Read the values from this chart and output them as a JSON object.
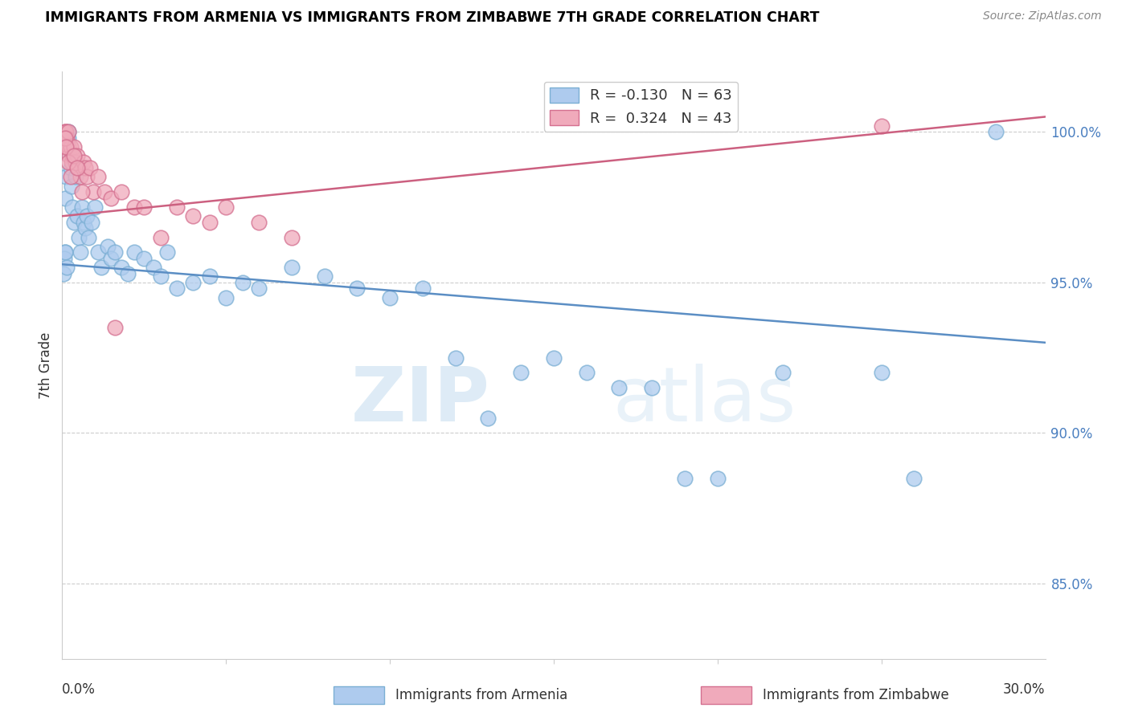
{
  "title": "IMMIGRANTS FROM ARMENIA VS IMMIGRANTS FROM ZIMBABWE 7TH GRADE CORRELATION CHART",
  "source": "Source: ZipAtlas.com",
  "ylabel": "7th Grade",
  "right_yticks": [
    85.0,
    90.0,
    95.0,
    100.0
  ],
  "xlim": [
    0.0,
    30.0
  ],
  "ylim": [
    82.5,
    102.0
  ],
  "legend1_label": "Immigrants from Armenia",
  "legend2_label": "Immigrants from Zimbabwe",
  "R_armenia": -0.13,
  "N_armenia": 63,
  "R_zimbabwe": 0.324,
  "N_zimbabwe": 43,
  "armenia_color": "#aecbee",
  "zimbabwe_color": "#f0aabb",
  "armenia_edge_color": "#7bafd4",
  "zimbabwe_edge_color": "#d47090",
  "armenia_line_color": "#5b8ec4",
  "zimbabwe_line_color": "#cc6080",
  "watermark_zip": "ZIP",
  "watermark_atlas": "atlas",
  "armenia_x": [
    0.05,
    0.08,
    0.1,
    0.12,
    0.15,
    0.18,
    0.2,
    0.22,
    0.25,
    0.28,
    0.3,
    0.35,
    0.38,
    0.4,
    0.45,
    0.5,
    0.55,
    0.6,
    0.65,
    0.7,
    0.75,
    0.8,
    0.9,
    1.0,
    1.1,
    1.2,
    1.4,
    1.5,
    1.6,
    1.8,
    2.0,
    2.2,
    2.5,
    2.8,
    3.0,
    3.2,
    3.5,
    4.0,
    4.5,
    5.0,
    5.5,
    6.0,
    7.0,
    8.0,
    9.0,
    10.0,
    11.0,
    12.0,
    13.0,
    14.0,
    15.0,
    16.0,
    17.0,
    18.0,
    19.0,
    20.0,
    22.0,
    25.0,
    26.0,
    0.06,
    0.1,
    0.14,
    28.5
  ],
  "armenia_y": [
    95.3,
    96.0,
    97.8,
    98.5,
    99.5,
    99.8,
    100.0,
    99.2,
    98.8,
    98.2,
    97.5,
    97.0,
    99.0,
    98.5,
    97.2,
    96.5,
    96.0,
    97.5,
    97.0,
    96.8,
    97.2,
    96.5,
    97.0,
    97.5,
    96.0,
    95.5,
    96.2,
    95.8,
    96.0,
    95.5,
    95.3,
    96.0,
    95.8,
    95.5,
    95.2,
    96.0,
    94.8,
    95.0,
    95.2,
    94.5,
    95.0,
    94.8,
    95.5,
    95.2,
    94.8,
    94.5,
    94.8,
    92.5,
    90.5,
    92.0,
    92.5,
    92.0,
    91.5,
    91.5,
    88.5,
    88.5,
    92.0,
    92.0,
    88.5,
    95.8,
    96.0,
    95.5,
    100.0
  ],
  "zimbabwe_x": [
    0.05,
    0.08,
    0.1,
    0.12,
    0.15,
    0.18,
    0.2,
    0.22,
    0.25,
    0.28,
    0.3,
    0.35,
    0.4,
    0.45,
    0.5,
    0.55,
    0.65,
    0.7,
    0.75,
    0.85,
    0.95,
    1.1,
    1.3,
    1.5,
    1.8,
    2.2,
    2.5,
    3.0,
    3.5,
    4.0,
    4.5,
    5.0,
    6.0,
    7.0,
    0.08,
    0.12,
    0.18,
    0.25,
    0.35,
    0.45,
    0.6,
    1.6,
    25.0
  ],
  "zimbabwe_y": [
    99.5,
    100.0,
    100.0,
    100.0,
    99.8,
    100.0,
    99.5,
    99.2,
    99.5,
    99.0,
    99.2,
    99.5,
    99.0,
    99.2,
    98.8,
    98.5,
    99.0,
    98.8,
    98.5,
    98.8,
    98.0,
    98.5,
    98.0,
    97.8,
    98.0,
    97.5,
    97.5,
    96.5,
    97.5,
    97.2,
    97.0,
    97.5,
    97.0,
    96.5,
    99.8,
    99.5,
    99.0,
    98.5,
    99.2,
    98.8,
    98.0,
    93.5,
    100.2
  ],
  "armenia_trend_x": [
    0.0,
    30.0
  ],
  "armenia_trend_y": [
    95.6,
    93.0
  ],
  "zimbabwe_trend_x": [
    0.0,
    30.0
  ],
  "zimbabwe_trend_y": [
    97.2,
    100.5
  ]
}
